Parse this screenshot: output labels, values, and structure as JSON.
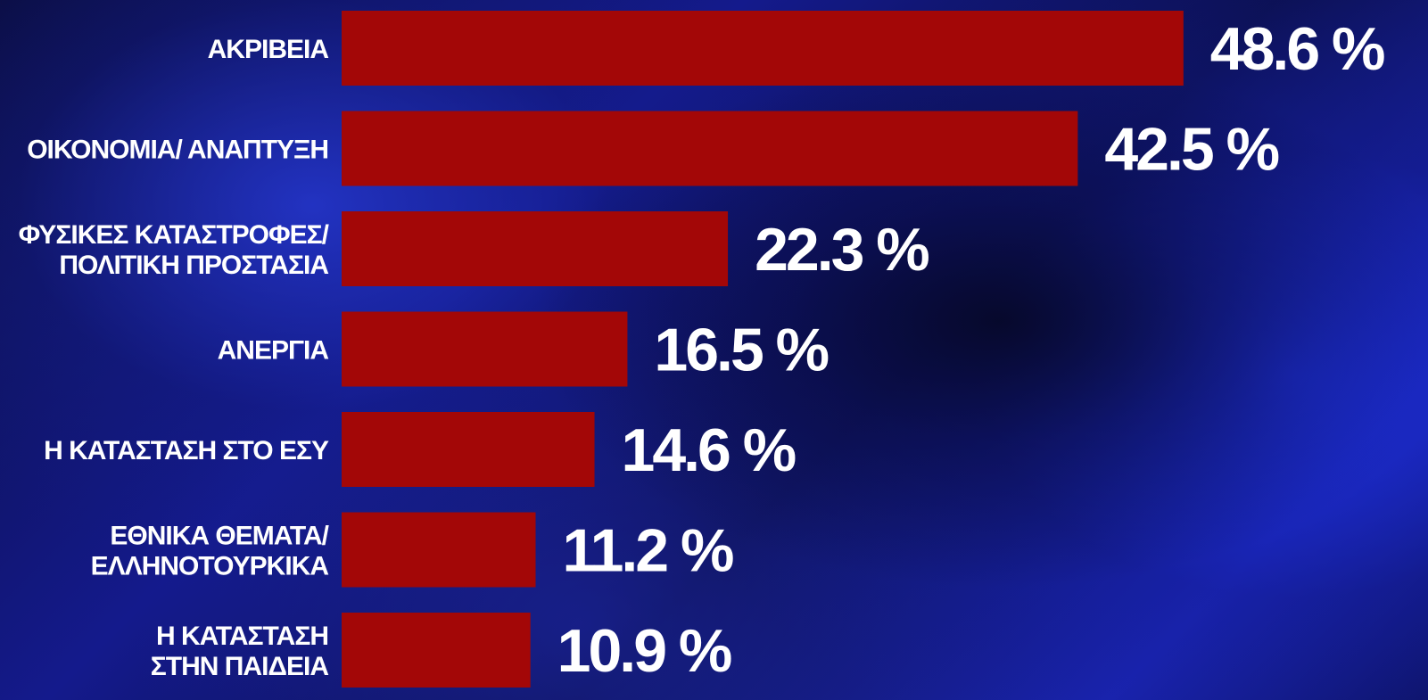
{
  "chart_data": {
    "type": "bar",
    "orientation": "horizontal",
    "categories": [
      [
        "ΑΚΡΙΒΕΙΑ"
      ],
      [
        "ΟΙΚΟΝΟΜΙΑ/ ΑΝΑΠΤΥΞΗ"
      ],
      [
        "ΦΥΣΙΚΕΣ ΚΑΤΑΣΤΡΟΦΕΣ/",
        "ΠΟΛΙΤΙΚΗ ΠΡΟΣΤΑΣΙΑ"
      ],
      [
        "ΑΝΕΡΓΙΑ"
      ],
      [
        "Η ΚΑΤΑΣΤΑΣΗ ΣΤΟ ΕΣΥ"
      ],
      [
        "ΕΘΝΙΚΑ ΘΕΜΑΤΑ/",
        "ΕΛΛΗΝΟΤΟΥΡΚΙΚΑ"
      ],
      [
        "Η ΚΑΤΑΣΤΑΣΗ",
        "ΣΤΗΝ ΠΑΙΔΕΙΑ"
      ]
    ],
    "values": [
      48.6,
      42.5,
      22.3,
      16.5,
      14.6,
      11.2,
      10.9
    ],
    "value_labels": [
      "48.6 %",
      "42.5 %",
      "22.3 %",
      "16.5 %",
      "14.6 %",
      "11.2 %",
      "10.9 %"
    ],
    "unit": "%",
    "colors": {
      "bar": "#a30707",
      "text": "#ffffff"
    },
    "title": "",
    "xlabel": "",
    "ylabel": "",
    "grid": false,
    "legend": "none"
  }
}
